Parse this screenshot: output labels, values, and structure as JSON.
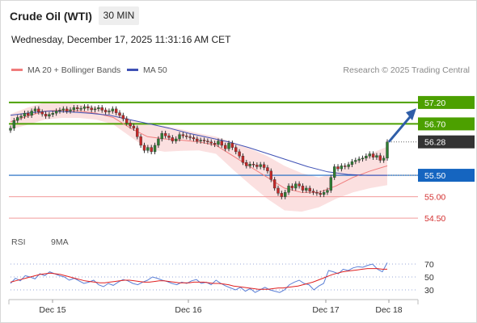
{
  "header": {
    "title": "Crude Oil (WTI)",
    "timeframe": "30 MIN",
    "datetime": "Wednesday, December 17, 2025 11:31:16 AM CET",
    "credit": "Research © 2025 Trading Central"
  },
  "legend": {
    "ma20_label": "MA 20 + Bollinger Bands",
    "ma50_label": "MA 50",
    "rsi_label": "RSI",
    "rsi_ma_label": "9MA"
  },
  "colors": {
    "ma20": "#f07c7c",
    "ma50": "#3f51b5",
    "band_fill": "#fbe0e0",
    "resistance": "#4ca000",
    "pivot": "#1565c0",
    "support": "#f29a9a",
    "support_text": "#d32f2f",
    "last_price": "#333333",
    "rsi": "#5b7fd6",
    "rsi_ma": "#e02020",
    "arrow": "#2f5ea8"
  },
  "chart_data": [
    {
      "type": "candlestick",
      "title": "Crude Oil (WTI)",
      "interval": "30 MIN",
      "x_ticks": [
        "Dec 15",
        "Dec 16",
        "Dec 17",
        "Dec 18"
      ],
      "y_range": [
        54.2,
        57.5
      ],
      "series": [
        {
          "name": "Price",
          "close": [
            56.6,
            56.78,
            56.85,
            56.88,
            56.95,
            56.9,
            57.0,
            57.05,
            56.98,
            56.93,
            56.88,
            56.92,
            56.95,
            57.0,
            57.02,
            57.05,
            57.0,
            57.03,
            57.08,
            57.05,
            57.06,
            57.1,
            57.07,
            57.03,
            57.05,
            57.08,
            57.02,
            56.98,
            57.0,
            57.05,
            56.96,
            56.9,
            56.82,
            56.72,
            56.65,
            56.6,
            56.4,
            56.2,
            56.08,
            56.15,
            56.05,
            56.2,
            56.35,
            56.48,
            56.42,
            56.38,
            56.3,
            56.35,
            56.45,
            56.42,
            56.4,
            56.38,
            56.35,
            56.3,
            56.32,
            56.3,
            56.28,
            56.25,
            56.22,
            56.3,
            56.2,
            56.12,
            56.25,
            56.15,
            56.05,
            55.95,
            55.8,
            55.72,
            55.76,
            55.74,
            55.7,
            55.75,
            55.68,
            55.6,
            55.4,
            55.2,
            55.08,
            55.0,
            55.1,
            55.25,
            55.2,
            55.3,
            55.25,
            55.15,
            55.2,
            55.13,
            55.1,
            55.08,
            55.05,
            55.1,
            55.15,
            55.45,
            55.7,
            55.65,
            55.72,
            55.7,
            55.75,
            55.82,
            55.85,
            55.88,
            55.9,
            55.95,
            56.0,
            55.92,
            55.96,
            55.85,
            55.9,
            56.28
          ]
        },
        {
          "name": "MA 20",
          "values": [
            56.75,
            56.88,
            57.0,
            57.02,
            57.0,
            56.95,
            56.85,
            56.6,
            56.4,
            56.35,
            56.32,
            56.28,
            56.2,
            55.95,
            55.7,
            55.45,
            55.2,
            55.1,
            55.1,
            55.25,
            55.45,
            55.6,
            55.72
          ]
        },
        {
          "name": "MA 50",
          "values": [
            56.9,
            56.96,
            57.0,
            56.98,
            56.95,
            56.9,
            56.8,
            56.7,
            56.6,
            56.48,
            56.38,
            56.28,
            56.15,
            56.0,
            55.85,
            55.7,
            55.58,
            55.52,
            55.5,
            55.5
          ]
        }
      ],
      "levels": [
        {
          "value": "57.20",
          "role": "resistance"
        },
        {
          "value": "56.70",
          "role": "resistance"
        },
        {
          "value": "56.28",
          "role": "last price"
        },
        {
          "value": "55.50",
          "role": "pivot"
        },
        {
          "value": "55.00",
          "role": "support"
        },
        {
          "value": "54.50",
          "role": "support"
        }
      ]
    },
    {
      "type": "line",
      "title": "RSI",
      "y_ticks": [
        "70",
        "50",
        "30"
      ],
      "y_range": [
        20,
        80
      ],
      "series": [
        {
          "name": "RSI",
          "values": [
            40,
            48,
            44,
            52,
            50,
            47,
            55,
            52,
            58,
            55,
            52,
            50,
            45,
            48,
            44,
            40,
            42,
            45,
            38,
            35,
            40,
            37,
            42,
            46,
            44,
            40,
            38,
            42,
            45,
            50,
            48,
            45,
            43,
            40,
            38,
            42,
            40,
            44,
            46,
            40,
            42,
            38,
            45,
            40,
            36,
            33,
            30,
            34,
            28,
            32,
            26,
            30,
            34,
            30,
            28,
            26,
            30,
            38,
            42,
            45,
            40,
            38,
            30,
            36,
            40,
            60,
            58,
            55,
            62,
            60,
            64,
            66,
            65,
            68,
            70,
            62,
            58,
            72
          ]
        },
        {
          "name": "9MA",
          "values": [
            42,
            44,
            46,
            48,
            50,
            52,
            54,
            55,
            56,
            55,
            54,
            52,
            50,
            48,
            46,
            44,
            43,
            42,
            41,
            41,
            42,
            43,
            44,
            45,
            45,
            44,
            43,
            42,
            42,
            43,
            44,
            44,
            43,
            42,
            41,
            41,
            41,
            42,
            42,
            42,
            41,
            40,
            40,
            39,
            38,
            36,
            35,
            34,
            33,
            32,
            31,
            31,
            31,
            32,
            33,
            33,
            34,
            35,
            36,
            38,
            40,
            42,
            45,
            48,
            51,
            54,
            56,
            58,
            59,
            60,
            61,
            62,
            63,
            63,
            63,
            62,
            62
          ]
        }
      ]
    }
  ]
}
